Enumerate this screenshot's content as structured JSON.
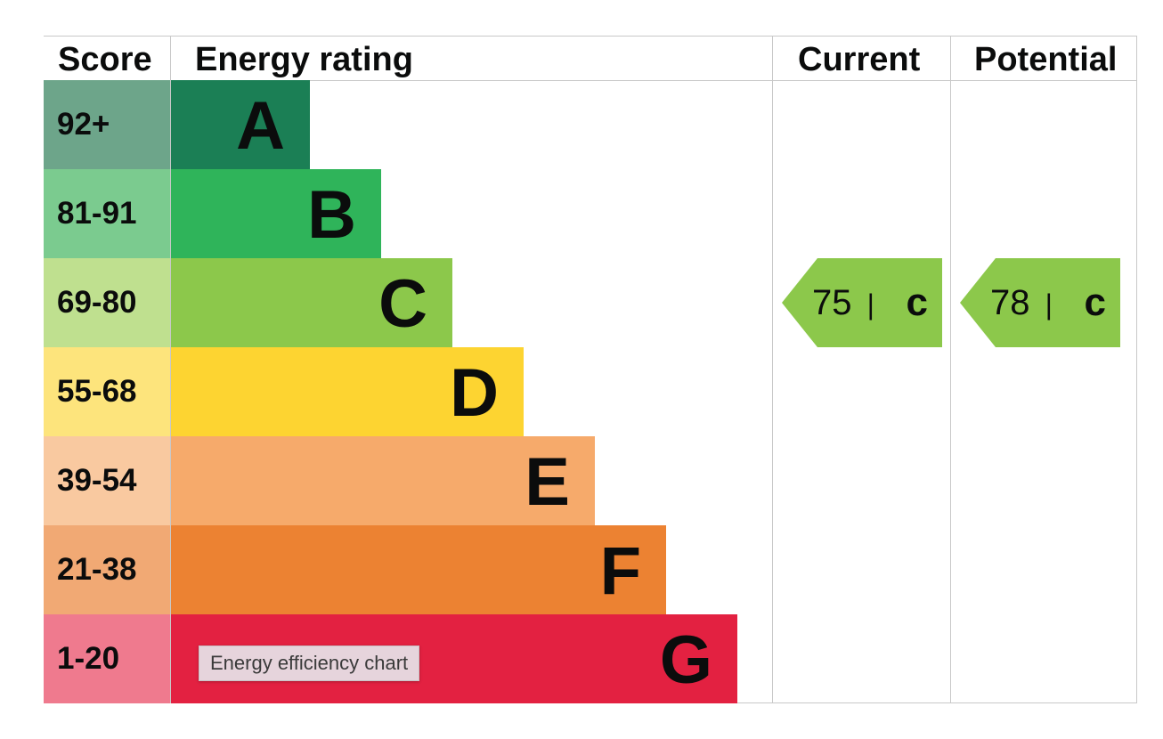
{
  "chart_data": {
    "type": "table",
    "headers": {
      "score": "Score",
      "rating": "Energy rating",
      "current": "Current",
      "potential": "Potential"
    },
    "bands": [
      {
        "score": "92+",
        "letter": "A",
        "color": "#1b7f55",
        "score_bg": "#6da58a"
      },
      {
        "score": "81-91",
        "letter": "B",
        "color": "#2fb45a",
        "score_bg": "#7bcb8f"
      },
      {
        "score": "69-80",
        "letter": "C",
        "color": "#8cc84b",
        "score_bg": "#bfe08f"
      },
      {
        "score": "55-68",
        "letter": "D",
        "color": "#fdd431",
        "score_bg": "#fde47c"
      },
      {
        "score": "39-54",
        "letter": "E",
        "color": "#f6aa6b",
        "score_bg": "#f9c9a0"
      },
      {
        "score": "21-38",
        "letter": "F",
        "color": "#ec8232",
        "score_bg": "#f1a974"
      },
      {
        "score": "1-20",
        "letter": "G",
        "color": "#e32141",
        "score_bg": "#ef7a8e"
      }
    ],
    "current": {
      "value": 75,
      "letter": "c",
      "band": "C",
      "separator": "|"
    },
    "potential": {
      "value": 78,
      "letter": "c",
      "band": "C",
      "separator": "|"
    }
  },
  "tooltip": "Energy efficiency chart"
}
